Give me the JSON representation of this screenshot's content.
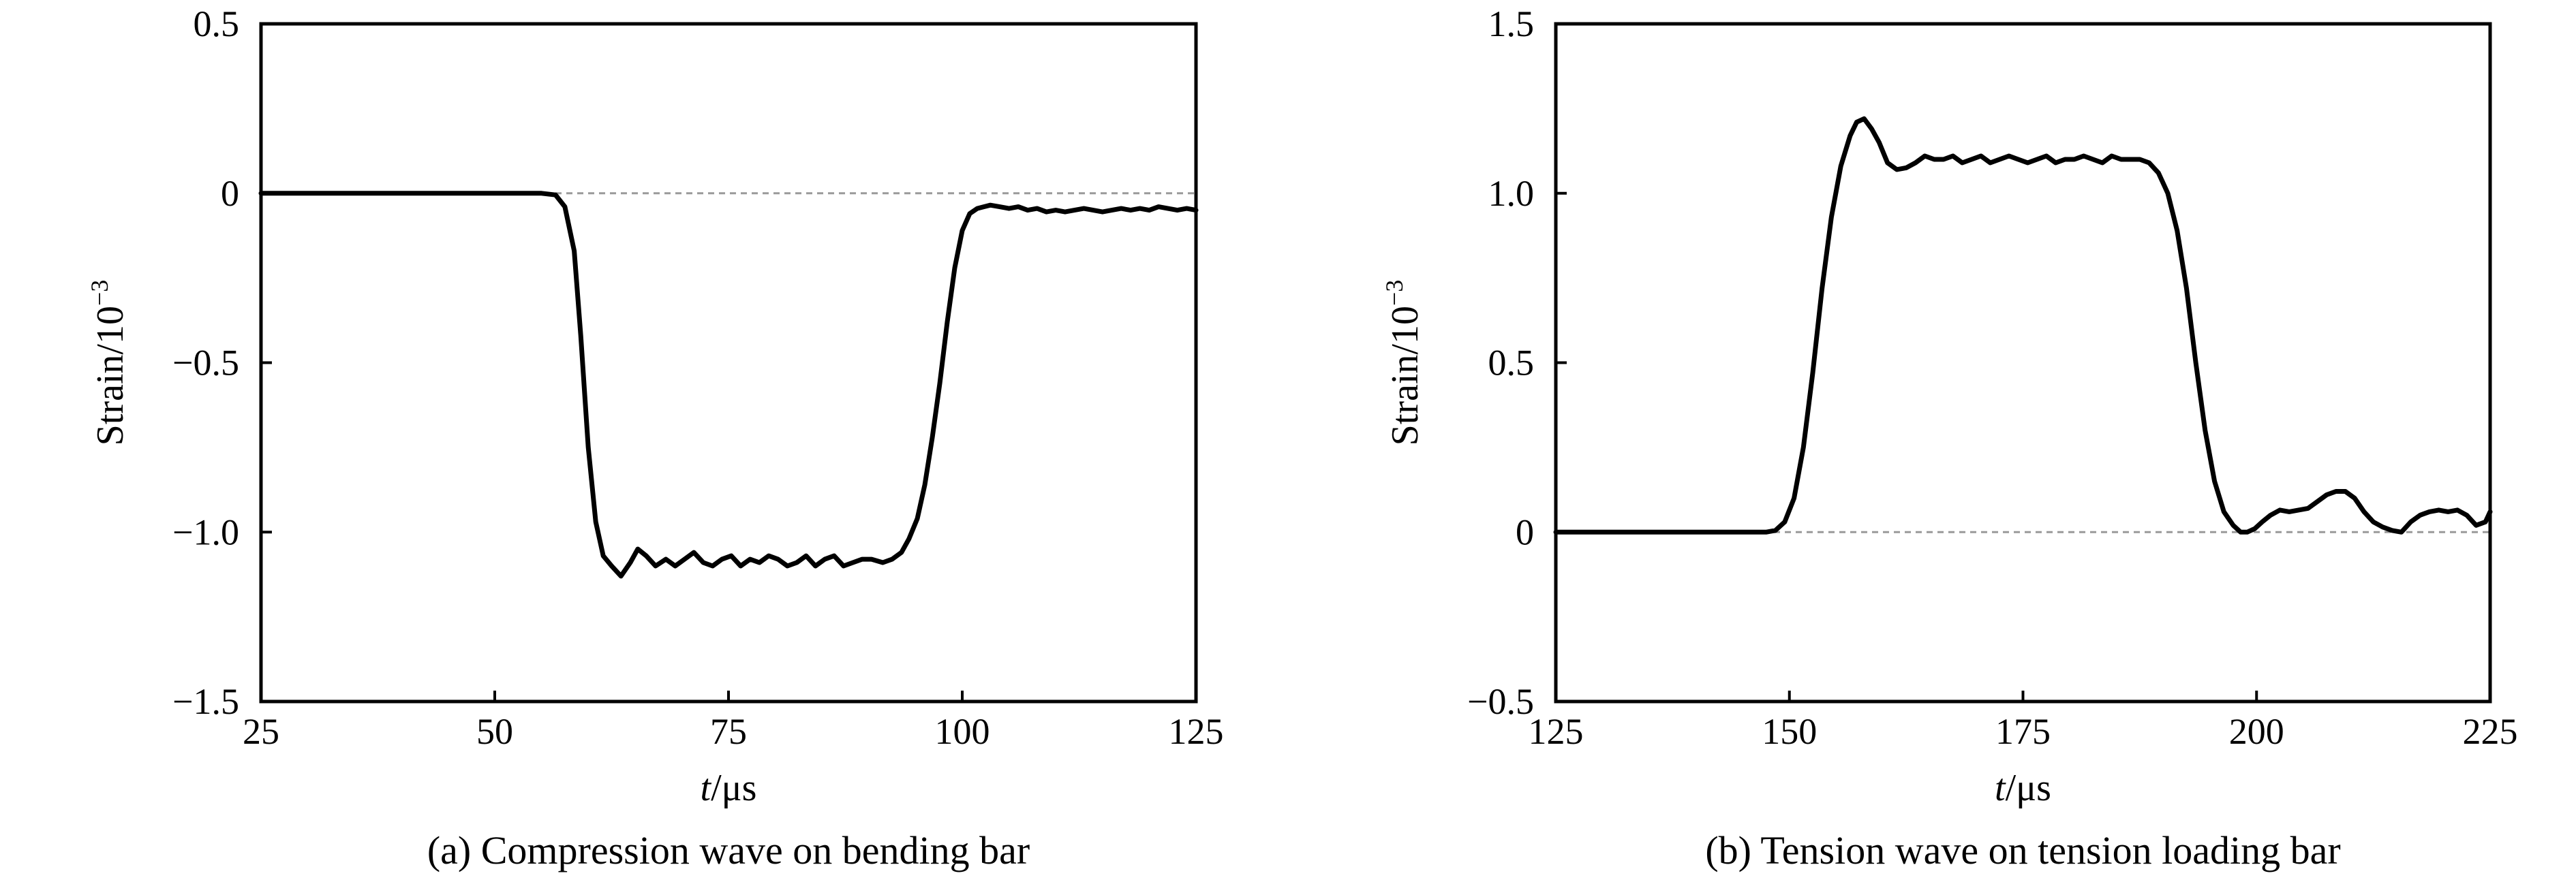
{
  "chart_data": [
    {
      "type": "line",
      "caption": "(a) Compression wave on bending bar",
      "xlabel": {
        "italic": "t",
        "rest": "/μs"
      },
      "ylabel": {
        "base": "Strain/10",
        "sup": "−3"
      },
      "xlim": [
        25,
        125
      ],
      "ylim": [
        -1.5,
        0.5
      ],
      "xticks": [
        25,
        50,
        75,
        100,
        125
      ],
      "xtick_labels": [
        "25",
        "50",
        "75",
        "100",
        "125"
      ],
      "yticks": [
        0.5,
        0,
        -0.5,
        -1.0,
        -1.5
      ],
      "ytick_labels": [
        "0.5",
        "0",
        "−0.5",
        "−1.0",
        "−1.5"
      ],
      "reference_line": {
        "y": 0,
        "style": "dashed"
      },
      "grid": false,
      "series": [
        {
          "color": "#000000",
          "x": [
            25,
            40,
            55,
            56.5,
            57.5,
            58.5,
            59.2,
            60,
            60.8,
            61.6,
            62.5,
            63.5,
            64.5,
            65.3,
            66.2,
            67.2,
            68.3,
            69.3,
            70.3,
            71.3,
            72.3,
            73.3,
            74.3,
            75.3,
            76.3,
            77.3,
            78.3,
            79.3,
            80.3,
            81.3,
            82.3,
            83.3,
            84.3,
            85.3,
            86.3,
            87.3,
            88.3,
            89.3,
            90.3,
            91.5,
            92.5,
            93.5,
            94.3,
            95.2,
            96.0,
            96.8,
            97.6,
            98.4,
            99.2,
            100.0,
            100.8,
            101.6,
            102.3,
            103.0,
            104.0,
            105.0,
            106.0,
            107.0,
            108.0,
            109.0,
            110.0,
            111.0,
            112.0,
            113.0,
            114.0,
            115.0,
            116.0,
            117.0,
            118.0,
            119.0,
            120.0,
            121.0,
            122.0,
            123.0,
            124.0,
            125.0
          ],
          "y": [
            0,
            0,
            0,
            -0.005,
            -0.04,
            -0.17,
            -0.42,
            -0.75,
            -0.97,
            -1.07,
            -1.1,
            -1.13,
            -1.09,
            -1.05,
            -1.07,
            -1.1,
            -1.08,
            -1.1,
            -1.08,
            -1.06,
            -1.09,
            -1.1,
            -1.08,
            -1.07,
            -1.1,
            -1.08,
            -1.09,
            -1.07,
            -1.08,
            -1.1,
            -1.09,
            -1.07,
            -1.1,
            -1.08,
            -1.07,
            -1.1,
            -1.09,
            -1.08,
            -1.08,
            -1.09,
            -1.08,
            -1.06,
            -1.02,
            -0.96,
            -0.86,
            -0.72,
            -0.56,
            -0.38,
            -0.22,
            -0.11,
            -0.06,
            -0.045,
            -0.04,
            -0.035,
            -0.04,
            -0.045,
            -0.04,
            -0.05,
            -0.045,
            -0.055,
            -0.05,
            -0.055,
            -0.05,
            -0.045,
            -0.05,
            -0.055,
            -0.05,
            -0.045,
            -0.05,
            -0.045,
            -0.05,
            -0.04,
            -0.045,
            -0.05,
            -0.045,
            -0.05
          ]
        }
      ]
    },
    {
      "type": "line",
      "caption": "(b) Tension wave on tension loading bar",
      "xlabel": {
        "italic": "t",
        "rest": "/μs"
      },
      "ylabel": {
        "base": "Strain/10",
        "sup": "−3"
      },
      "xlim": [
        125,
        225
      ],
      "ylim": [
        -0.5,
        1.5
      ],
      "xticks": [
        125,
        150,
        175,
        200,
        225
      ],
      "xtick_labels": [
        "125",
        "150",
        "175",
        "200",
        "225"
      ],
      "yticks": [
        1.5,
        1.0,
        0.5,
        0,
        -0.5
      ],
      "ytick_labels": [
        "1.5",
        "1.0",
        "0.5",
        "0",
        "−0.5"
      ],
      "reference_line": {
        "y": 0,
        "style": "dashed"
      },
      "grid": false,
      "series": [
        {
          "color": "#000000",
          "x": [
            125,
            140,
            147.5,
            148.5,
            149.5,
            150.5,
            151.5,
            152.5,
            153.5,
            154.5,
            155.5,
            156.5,
            157.2,
            158.0,
            158.8,
            159.6,
            160.5,
            161.5,
            162.5,
            163.5,
            164.5,
            165.5,
            166.5,
            167.5,
            168.5,
            169.5,
            170.5,
            171.5,
            172.5,
            173.5,
            174.5,
            175.5,
            176.5,
            177.5,
            178.5,
            179.5,
            180.5,
            181.5,
            182.5,
            183.5,
            184.5,
            185.5,
            186.5,
            187.5,
            188.5,
            189.5,
            190.5,
            191.5,
            192.5,
            193.5,
            194.5,
            195.5,
            196.5,
            197.5,
            198.3,
            199.0,
            199.8,
            200.6,
            201.5,
            202.5,
            203.5,
            204.5,
            205.5,
            206.5,
            207.5,
            208.5,
            209.5,
            210.5,
            211.5,
            212.5,
            213.5,
            214.5,
            215.5,
            216.5,
            217.5,
            218.5,
            219.5,
            220.5,
            221.5,
            222.5,
            223.5,
            224.5,
            225
          ],
          "y": [
            0,
            0,
            0,
            0.005,
            0.03,
            0.1,
            0.25,
            0.47,
            0.72,
            0.93,
            1.08,
            1.17,
            1.21,
            1.22,
            1.19,
            1.15,
            1.09,
            1.07,
            1.075,
            1.09,
            1.11,
            1.1,
            1.1,
            1.11,
            1.09,
            1.1,
            1.11,
            1.09,
            1.1,
            1.11,
            1.1,
            1.09,
            1.1,
            1.11,
            1.09,
            1.1,
            1.1,
            1.11,
            1.1,
            1.09,
            1.11,
            1.1,
            1.1,
            1.1,
            1.09,
            1.06,
            1.0,
            0.89,
            0.72,
            0.5,
            0.3,
            0.15,
            0.06,
            0.02,
            0.0,
            0.0,
            0.01,
            0.03,
            0.05,
            0.065,
            0.06,
            0.065,
            0.07,
            0.09,
            0.11,
            0.12,
            0.12,
            0.1,
            0.06,
            0.03,
            0.015,
            0.005,
            0.0,
            0.03,
            0.05,
            0.06,
            0.065,
            0.06,
            0.065,
            0.05,
            0.02,
            0.03,
            0.06
          ]
        }
      ]
    }
  ]
}
